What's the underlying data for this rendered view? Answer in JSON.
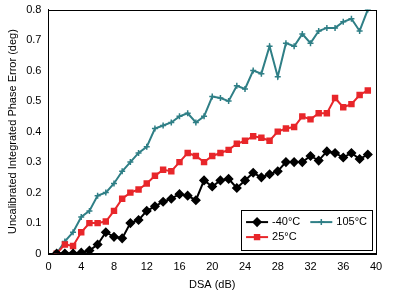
{
  "chart_data": {
    "type": "line",
    "x_label": "DSA (dB)",
    "y_label": "Uncalibrated Integrated Phase Error (deg)",
    "x": [
      1,
      2,
      3,
      4,
      5,
      6,
      7,
      8,
      9,
      10,
      11,
      12,
      13,
      14,
      15,
      16,
      17,
      18,
      19,
      20,
      21,
      22,
      23,
      24,
      25,
      26,
      27,
      28,
      29,
      30,
      31,
      32,
      33,
      34,
      35,
      36,
      37,
      38,
      39
    ],
    "series": [
      {
        "name": "-40°C",
        "color": "#000000",
        "marker": "diamond",
        "values": [
          0,
          0,
          0,
          0.003,
          0.01,
          0.03,
          0.07,
          0.055,
          0.05,
          0.1,
          0.11,
          0.14,
          0.155,
          0.17,
          0.18,
          0.195,
          0.19,
          0.175,
          0.24,
          0.22,
          0.24,
          0.245,
          0.215,
          0.24,
          0.265,
          0.25,
          0.26,
          0.27,
          0.3,
          0.3,
          0.3,
          0.32,
          0.305,
          0.335,
          0.33,
          0.315,
          0.33,
          0.31,
          0.325
        ]
      },
      {
        "name": "25°C",
        "color": "#e8262a",
        "marker": "square",
        "values": [
          0,
          0.03,
          0.025,
          0.07,
          0.1,
          0.1,
          0.105,
          0.14,
          0.18,
          0.2,
          0.21,
          0.23,
          0.255,
          0.275,
          0.27,
          0.3,
          0.33,
          0.32,
          0.3,
          0.32,
          0.33,
          0.34,
          0.36,
          0.37,
          0.385,
          0.38,
          0.37,
          0.4,
          0.41,
          0.415,
          0.45,
          0.44,
          0.46,
          0.46,
          0.51,
          0.48,
          0.49,
          0.52,
          0.535
        ]
      },
      {
        "name": "105°C",
        "color": "#2f7f86",
        "marker": "cross",
        "values": [
          0,
          0.04,
          0.07,
          0.12,
          0.14,
          0.19,
          0.2,
          0.23,
          0.27,
          0.3,
          0.33,
          0.35,
          0.41,
          0.42,
          0.43,
          0.45,
          0.46,
          0.43,
          0.45,
          0.515,
          0.51,
          0.5,
          0.55,
          0.54,
          0.6,
          0.59,
          0.68,
          0.58,
          0.69,
          0.68,
          0.72,
          0.69,
          0.73,
          0.74,
          0.74,
          0.76,
          0.77,
          0.73,
          0.8
        ]
      }
    ],
    "xlim": [
      0,
      40
    ],
    "xticks": [
      0,
      4,
      8,
      12,
      16,
      20,
      24,
      28,
      32,
      36,
      40
    ],
    "ylim": [
      0,
      0.8
    ],
    "yticks": [
      0,
      0.1,
      0.2,
      0.3,
      0.4,
      0.5,
      0.6,
      0.7,
      0.8
    ],
    "grid": false,
    "legend": "lower right"
  }
}
